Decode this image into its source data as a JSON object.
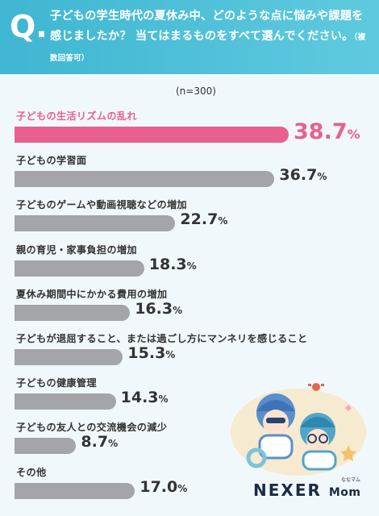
{
  "question": {
    "mark": "Q.",
    "text": "子どもの学生時代の夏休み中、どのような点に悩みや課題を感じましたか？ 当てはまるものをすべて選んでください。",
    "note": "（複数回答可）"
  },
  "sample_size": "(n=300)",
  "chart_data": {
    "type": "bar",
    "orientation": "horizontal",
    "title": "子どもの学生時代の夏休み中、どのような点に悩みや課題を感じましたか？ 当てはまるものをすべて選んでください。（複数回答可）",
    "categories": [
      "子どもの生活リズムの乱れ",
      "子どもの学習面",
      "子どものゲームや動画視聴などの増加",
      "親の育児・家事負担の増加",
      "夏休み期間中にかかる費用の増加",
      "子どもが退屈すること、または過ごし方にマンネリを感じること",
      "子どもの健康管理",
      "子どもの友人との交流機会の減少",
      "その他"
    ],
    "values": [
      38.7,
      36.7,
      22.7,
      18.3,
      16.3,
      15.3,
      14.3,
      8.7,
      17.0
    ],
    "value_labels": [
      "38.7",
      "36.7",
      "22.7",
      "18.3",
      "16.3",
      "15.3",
      "14.3",
      "8.7",
      "17.0"
    ],
    "unit": "%",
    "highlight_index": 0,
    "xlim": [
      0,
      38.7
    ],
    "grid": false,
    "legend": "none"
  },
  "colors": {
    "header": "#4bbfd8",
    "highlight": "#e8608e",
    "bar": "#a3a5a8",
    "background": "#f1f8fb"
  },
  "brand": {
    "logo_main": "NEXER",
    "logo_sub": "Mom",
    "logo_ruby": "ななマム"
  }
}
